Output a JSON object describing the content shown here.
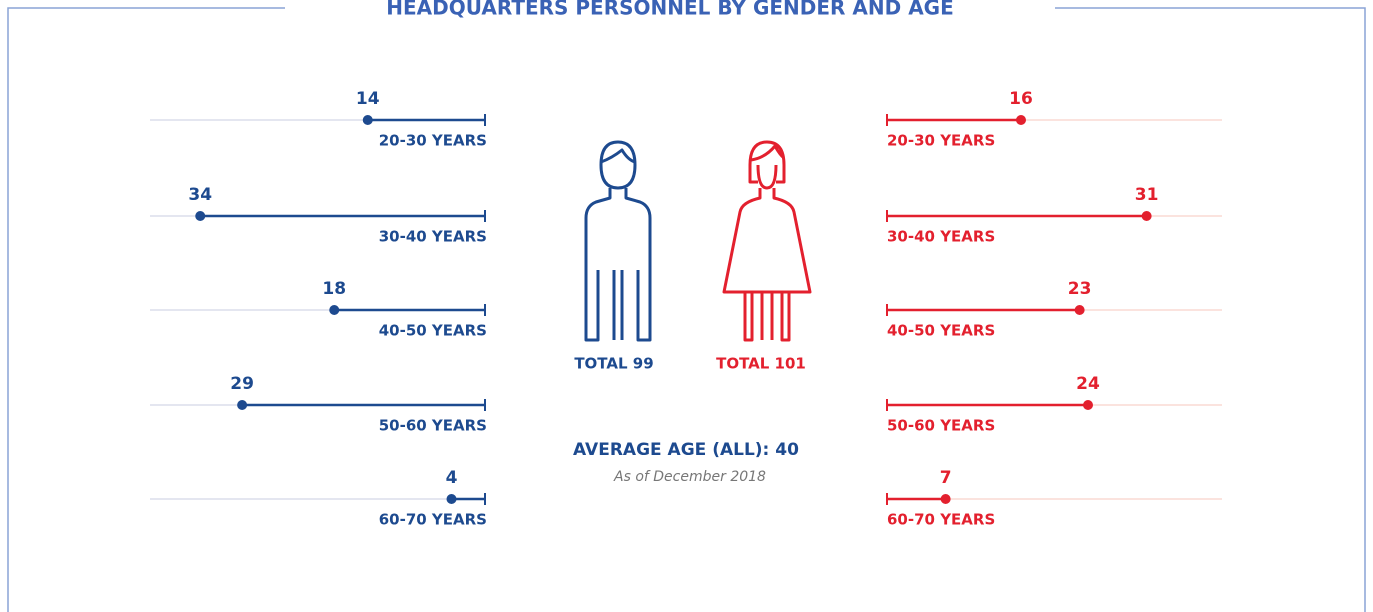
{
  "chart_data": {
    "type": "lollipop",
    "title": "HEADQUARTERS PERSONNEL BY GENDER AND AGE",
    "categories": [
      "20-30 YEARS",
      "30-40 YEARS",
      "40-50 YEARS",
      "50-60 YEARS",
      "60-70 YEARS"
    ],
    "series": [
      {
        "color": "#1d4a8f",
        "values": [
          14,
          34,
          18,
          29,
          4
        ]
      },
      {
        "color": "#e3202e",
        "values": [
          16,
          31,
          23,
          24,
          7
        ]
      }
    ],
    "xlim": [
      0,
      40
    ],
    "annotations": [
      "TOTAL 99",
      "TOTAL 101",
      "AVERAGE AGE (ALL): 40",
      "As of December 2018"
    ]
  }
}
